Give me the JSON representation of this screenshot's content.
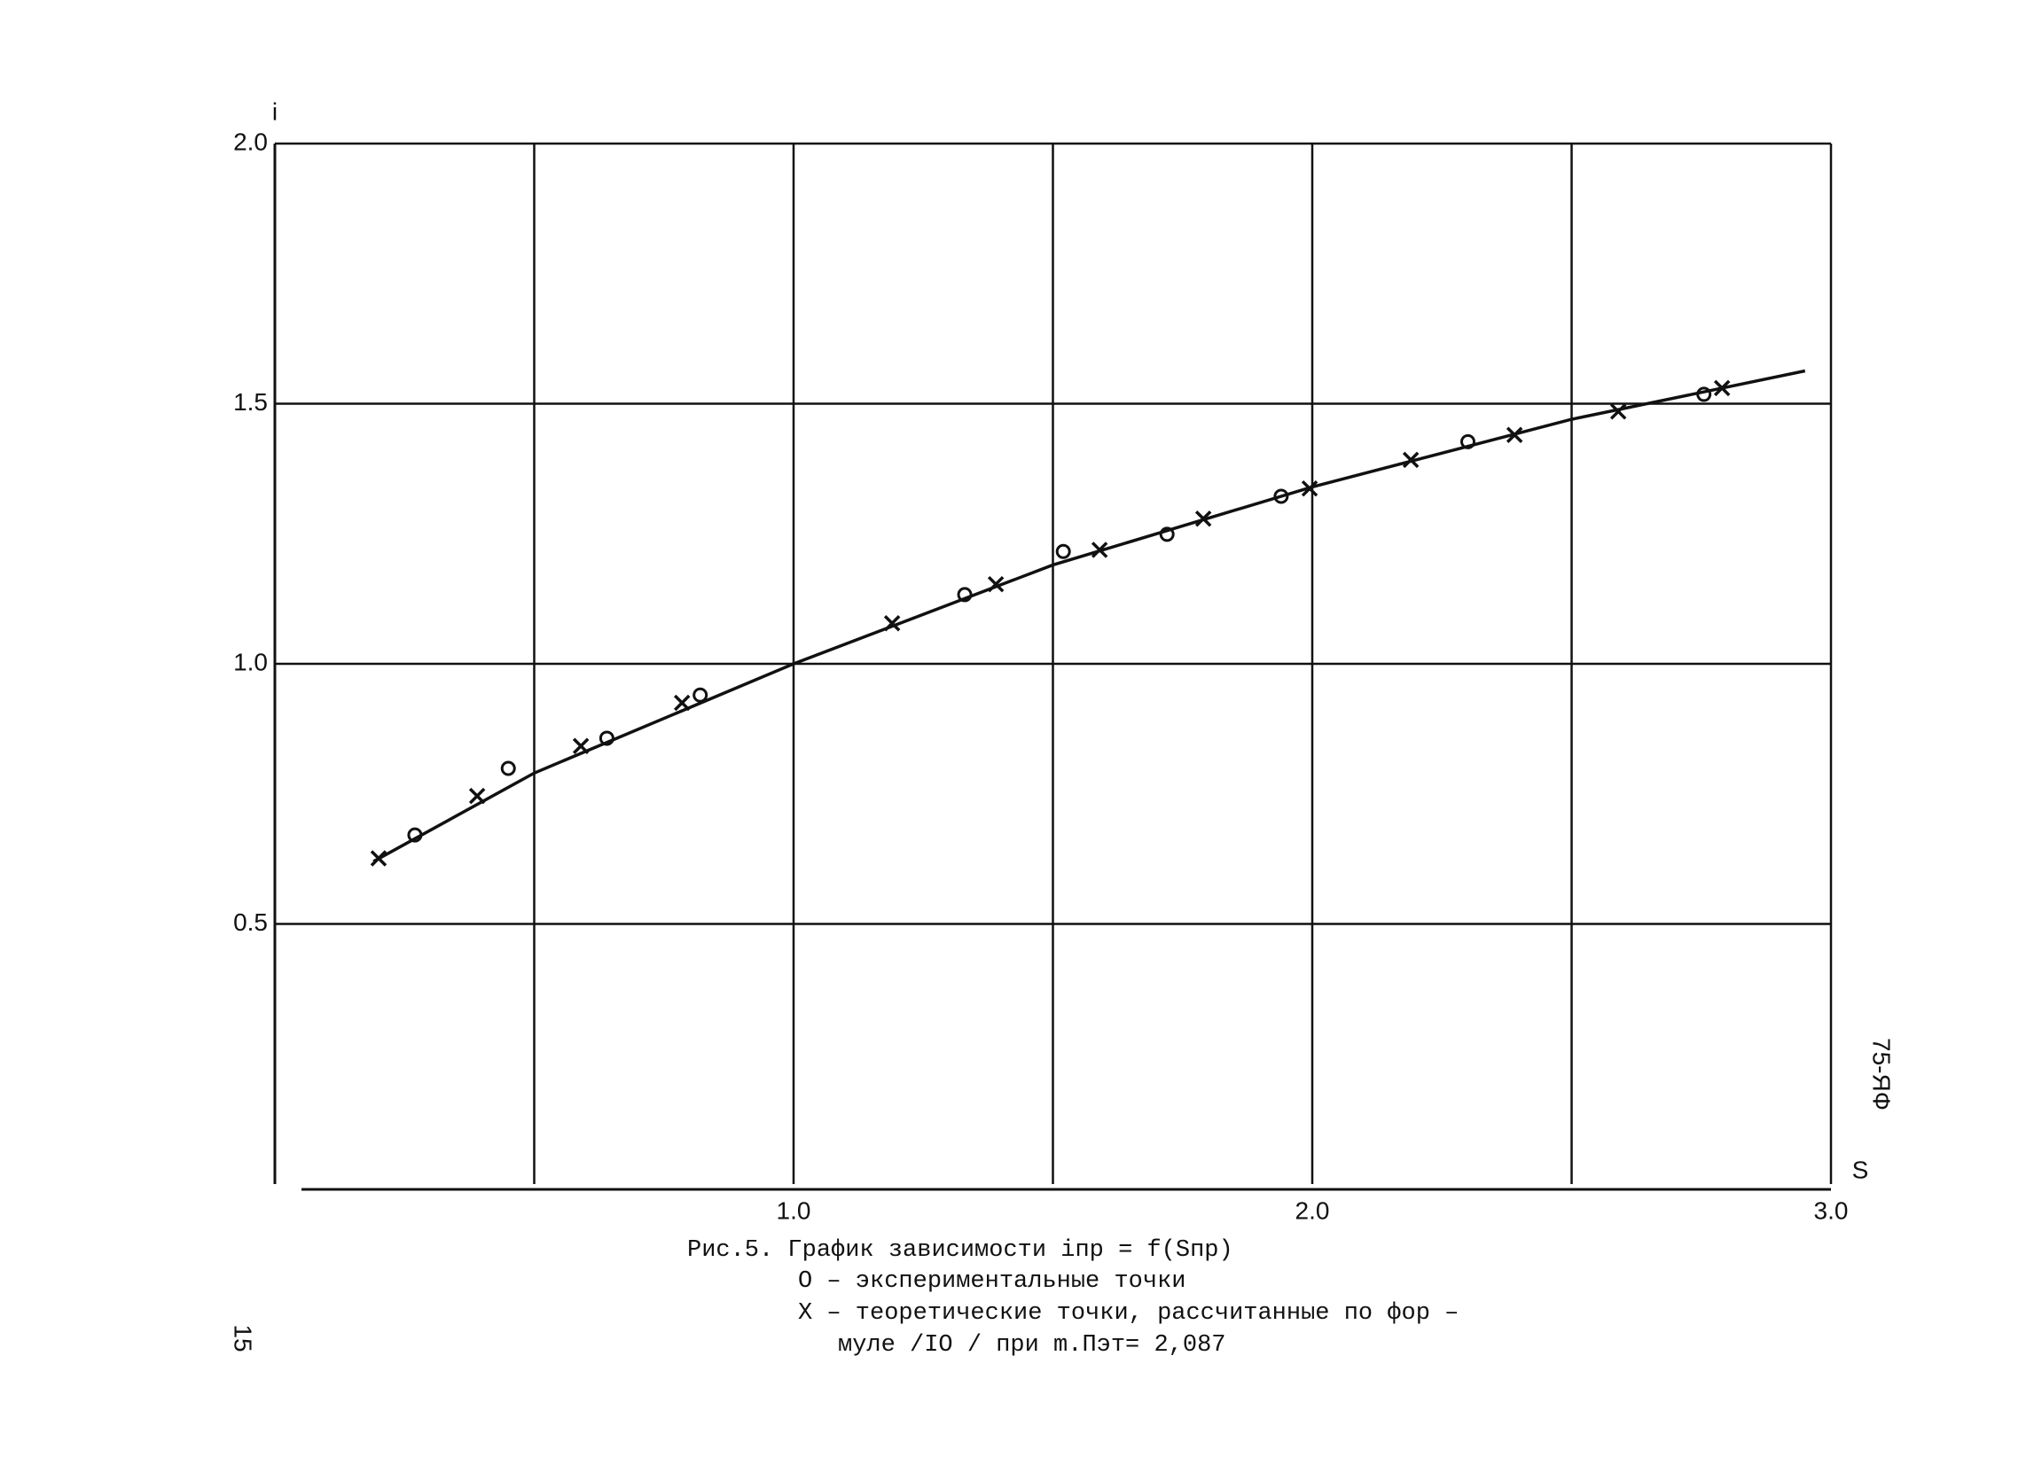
{
  "chart_data": {
    "type": "line",
    "ylabel": "i",
    "xlabel": "S",
    "xlim": [
      0,
      3
    ],
    "ylim": [
      0,
      2
    ],
    "xticks": [
      {
        "value": 1,
        "label": "1.0"
      },
      {
        "value": 2,
        "label": "2.0"
      },
      {
        "value": 3,
        "label": "3.0"
      }
    ],
    "yticks": [
      0.5,
      {
        "value": 1,
        "label": "1.0"
      },
      1.5,
      {
        "value": 2,
        "label": "2.0"
      }
    ],
    "xgrid": [
      0.5,
      1,
      1.5,
      2,
      2.5,
      3
    ],
    "grid": true,
    "color": "#111111",
    "series": [
      {
        "type": "line",
        "x": [
          0.19,
          0.5,
          1.0,
          1.5,
          2.0,
          2.5,
          2.95
        ],
        "values": [
          0.62,
          0.79,
          1.0,
          1.19,
          1.34,
          1.47,
          1.563
        ]
      },
      {
        "type": "scatter",
        "marker": "o",
        "x": [
          0.27,
          0.45,
          0.64,
          0.82,
          1.33,
          1.52,
          1.72,
          1.94,
          2.3,
          2.755
        ],
        "values": [
          0.671,
          0.799,
          0.857,
          0.94,
          1.133,
          1.216,
          1.249,
          1.322,
          1.427,
          1.518
        ]
      },
      {
        "type": "scatter",
        "marker": "x",
        "x": [
          0.2,
          0.39,
          0.59,
          0.785,
          1.19,
          1.39,
          1.59,
          1.79,
          1.995,
          2.19,
          2.39,
          2.59,
          2.79
        ],
        "values": [
          0.626,
          0.746,
          0.842,
          0.925,
          1.078,
          1.153,
          1.219,
          1.279,
          1.337,
          1.392,
          1.44,
          1.485,
          1.53
        ]
      }
    ],
    "caption": [
      "Рис.5. График зависимости iпр = f(Sпр)",
      "О – экспериментальные точки",
      "X – теоретические точки, рассчитанные по фор –",
      "муле /IO / при      m.Пэт= 2,087"
    ]
  },
  "side_note": "75-ЯФ",
  "page_number": "15"
}
